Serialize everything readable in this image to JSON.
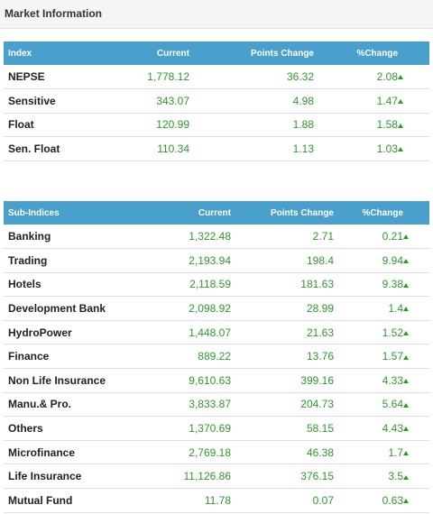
{
  "header": {
    "title": "Market Information"
  },
  "index_table": {
    "columns": {
      "name": "Index",
      "current": "Current",
      "points": "Points Change",
      "pct": "%Change"
    },
    "rows": [
      {
        "name": "NEPSE",
        "current": "1,778.12",
        "points": "36.32",
        "pct": "2.08",
        "direction": "up"
      },
      {
        "name": "Sensitive",
        "current": "343.07",
        "points": "4.98",
        "pct": "1.47",
        "direction": "up"
      },
      {
        "name": "Float",
        "current": "120.99",
        "points": "1.88",
        "pct": "1.58",
        "direction": "up"
      },
      {
        "name": "Sen. Float",
        "current": "110.34",
        "points": "1.13",
        "pct": "1.03",
        "direction": "up"
      }
    ]
  },
  "sub_table": {
    "columns": {
      "name": "Sub-Indices",
      "current": "Current",
      "points": "Points Change",
      "pct": "%Change"
    },
    "rows": [
      {
        "name": "Banking",
        "current": "1,322.48",
        "points": "2.71",
        "pct": "0.21",
        "direction": "up"
      },
      {
        "name": "Trading",
        "current": "2,193.94",
        "points": "198.4",
        "pct": "9.94",
        "direction": "up"
      },
      {
        "name": "Hotels",
        "current": "2,118.59",
        "points": "181.63",
        "pct": "9.38",
        "direction": "up"
      },
      {
        "name": "Development Bank",
        "current": "2,098.92",
        "points": "28.99",
        "pct": "1.4",
        "direction": "up"
      },
      {
        "name": "HydroPower",
        "current": "1,448.07",
        "points": "21.63",
        "pct": "1.52",
        "direction": "up"
      },
      {
        "name": "Finance",
        "current": "889.22",
        "points": "13.76",
        "pct": "1.57",
        "direction": "up"
      },
      {
        "name": "Non Life Insurance",
        "current": "9,610.63",
        "points": "399.16",
        "pct": "4.33",
        "direction": "up"
      },
      {
        "name": "Manu.& Pro.",
        "current": "3,833.87",
        "points": "204.73",
        "pct": "5.64",
        "direction": "up"
      },
      {
        "name": "Others",
        "current": "1,370.69",
        "points": "58.15",
        "pct": "4.43",
        "direction": "up"
      },
      {
        "name": "Microfinance",
        "current": "2,769.18",
        "points": "46.38",
        "pct": "1.7",
        "direction": "up"
      },
      {
        "name": "Life Insurance",
        "current": "11,126.86",
        "points": "376.15",
        "pct": "3.5",
        "direction": "up"
      },
      {
        "name": "Mutual Fund",
        "current": "11.78",
        "points": "0.07",
        "pct": "0.63",
        "direction": "up"
      }
    ]
  },
  "colors": {
    "header_bg": "#4aa0cc",
    "positive": "#2d9a2d",
    "icon": "up-arrow-icon"
  }
}
